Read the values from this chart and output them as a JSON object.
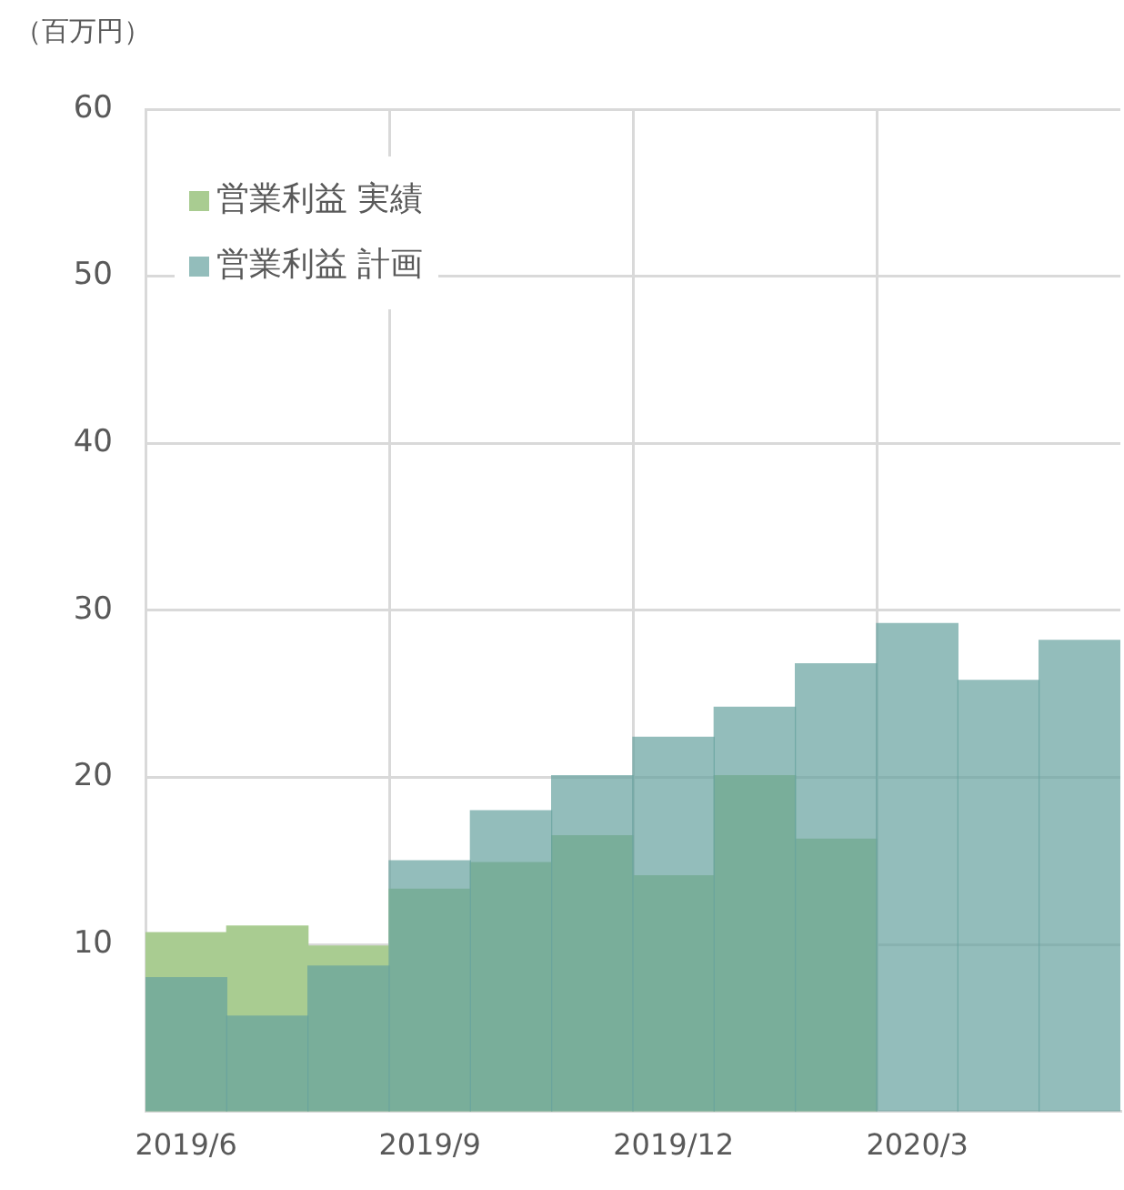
{
  "chart_data": {
    "type": "bar",
    "ylabel": "（百万円）",
    "categories": [
      "2019/6",
      null,
      null,
      "2019/9",
      null,
      null,
      "2019/12",
      null,
      null,
      "2020/3",
      null,
      null
    ],
    "series": [
      {
        "name": "営業利益 実績",
        "color": "#a9cc91",
        "values": [
          10.7,
          11.1,
          9.9,
          13.3,
          14.9,
          16.5,
          14.1,
          20.1,
          16.3,
          null,
          null,
          null
        ]
      },
      {
        "name": "営業利益 計画",
        "color": "#93bdbb",
        "values": [
          8.0,
          5.7,
          8.7,
          15.0,
          18.0,
          20.1,
          22.4,
          24.2,
          26.8,
          29.2,
          25.8,
          28.2
        ]
      }
    ],
    "ylim": [
      0,
      60
    ],
    "yticks": [
      10,
      20,
      30,
      40,
      50,
      60
    ],
    "grid": true,
    "legend": "top left"
  }
}
